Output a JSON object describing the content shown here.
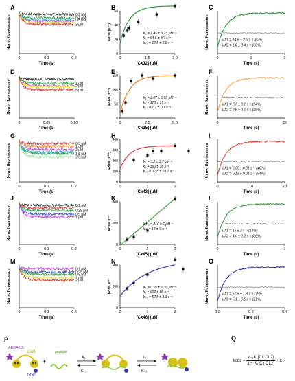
{
  "panels": {
    "A": {
      "label": "A",
      "ylabel": "Norm. fluorescence",
      "xlabel": "Time (s)",
      "xticks": [
        "0",
        "0.1",
        "0.2"
      ],
      "series": [
        {
          "name": "0.2 μM",
          "color": "#333333",
          "y": 0.97
        },
        {
          "name": "0.4 μM",
          "color": "#2ea043",
          "y": 0.88
        },
        {
          "name": "0.5 μM",
          "color": "#1fb0d6",
          "y": 0.83
        },
        {
          "name": "",
          "color": "#c848d8",
          "y": 0.8
        },
        {
          "name": "",
          "color": "#e8e030",
          "y": 0.77
        },
        {
          "name": "3 μM",
          "color": "#d63a3a",
          "y": 0.72
        }
      ]
    },
    "B": {
      "label": "B",
      "ylabel": "kobs (s⁻¹)",
      "xlabel": "[Cx32] (μM)",
      "xticks": [
        "0",
        "1.5",
        "3.0"
      ],
      "yticks": [
        "0",
        "20",
        "40",
        "60"
      ],
      "color": "#2e9b3c",
      "points": [
        [
          0.2,
          25
        ],
        [
          0.4,
          33
        ],
        [
          0.5,
          36
        ],
        [
          1.0,
          45
        ],
        [
          2.0,
          55
        ],
        [
          3.0,
          67
        ]
      ],
      "ann": [
        "K₁ = 1.45 ± 0.23 μM⁻¹",
        "k₂ = 64.5 ± 3.7 s⁻¹",
        "k₋₂ = 14.5 ± 2.6 s⁻¹"
      ]
    },
    "C": {
      "label": "C",
      "ylabel": "Norm. fluorescence",
      "xlabel": "Time (s)",
      "xticks": [
        "0",
        "1",
        "2"
      ],
      "color": "#2e9b3c",
      "ann": [
        "kₒff1 = 14.5 ± 2.6 s⁻¹ (62%)",
        "kₒff2 = 1.8 ± 0.4 s⁻¹ (38%)"
      ]
    },
    "D": {
      "label": "D",
      "ylabel": "Norm. fluorescence",
      "xlabel": "Time (s)",
      "xticks": [
        "0",
        "0.05",
        "0.10"
      ],
      "series": [
        {
          "name": "",
          "color": "#333333",
          "y": 0.96
        },
        {
          "name": "1 μM",
          "color": "#2ea043",
          "y": 0.86
        },
        {
          "name": "2 μM",
          "color": "#c848d8",
          "y": 0.8
        },
        {
          "name": "",
          "color": "#e8e030",
          "y": 0.77
        },
        {
          "name": "5 μM",
          "color": "#d63a3a",
          "y": 0.7
        }
      ]
    },
    "E": {
      "label": "E",
      "ylabel": "kobs (s⁻¹)",
      "xlabel": "[Cx35] (μM)",
      "xticks": [
        "0",
        "2.5",
        "5.0"
      ],
      "yticks": [
        "0",
        "50",
        "100",
        "150"
      ],
      "color": "#f07d1e",
      "points": [
        [
          0.2,
          25
        ],
        [
          0.5,
          55
        ],
        [
          1.0,
          130
        ],
        [
          2.0,
          150
        ],
        [
          3.0,
          140
        ],
        [
          5.0,
          150
        ]
      ],
      "ann": [
        "K₁ = 2.07 ± 0.78 μM⁻¹",
        "k₂ = 170 ± 15 s⁻¹",
        "k₋₂ = 7.7 ± 0.1 s⁻¹"
      ]
    },
    "F": {
      "label": "F",
      "ylabel": "Norm. fluorescence",
      "xlabel": "Time (s)",
      "xticks": [
        "0",
        "25"
      ],
      "color": "#f5a04a",
      "ann": [
        "kₒff1 = 7.7 ± 0.1 s⁻¹ (54%)",
        "kₒff2 = 2.6 ± 0.1 s⁻¹ (46%)"
      ]
    },
    "G": {
      "label": "G",
      "ylabel": "Norm. fluorescence",
      "xlabel": "Time (s)",
      "xticks": [
        "0",
        "0.1",
        "0.2"
      ],
      "series": [
        {
          "name": "0.5 μM",
          "color": "#d63a3a",
          "y": 0.95
        },
        {
          "name": "1 μM",
          "color": "#f07d1e",
          "y": 0.88
        },
        {
          "name": "2 μM",
          "color": "#c848d8",
          "y": 0.8
        },
        {
          "name": "",
          "color": "#1fb0d6",
          "y": 0.74
        },
        {
          "name": "1.5 μM",
          "color": "#2ea043",
          "y": 0.7
        },
        {
          "name": "2.5 μM",
          "color": "#9ee09e",
          "y": 0.62
        }
      ]
    },
    "H": {
      "label": "H",
      "ylabel": "kobs (s⁻¹)",
      "xlabel": "[Cx43] (μM)",
      "xticks": [
        "0",
        "1",
        "2"
      ],
      "yticks": [
        "0",
        "100",
        "200",
        "300",
        "400"
      ],
      "color": "#e03a3a",
      "points": [
        [
          0.5,
          205
        ],
        [
          1.0,
          250
        ],
        [
          1.2,
          290
        ],
        [
          1.5,
          290
        ],
        [
          2.0,
          340
        ],
        [
          2.5,
          290
        ]
      ],
      "ann": [
        "K₁ = 3.2 ± 1.7 μM⁻¹",
        "k₂ = 360 ± 38 s⁻¹",
        "k₋₂ = 0.35 ± 0.01 s⁻¹"
      ]
    },
    "I": {
      "label": "I",
      "ylabel": "Norm. fluorescence",
      "xlabel": "Time (s)",
      "xticks": [
        "0",
        "10",
        "20"
      ],
      "color": "#e03a3a",
      "ann": [
        "kₒff1 = 0.35 ± 0.01 s⁻¹ (46%)",
        "kₒff2 = 0.13 ± 0.01 s⁻¹ (54%)"
      ]
    },
    "J": {
      "label": "J",
      "ylabel": "Norm. fluorescence",
      "xlabel": "Time (s)",
      "xticks": [
        "0",
        "0.1",
        "0.2"
      ],
      "series": [
        {
          "name": "0.1 μM",
          "color": "#333333",
          "y": 0.97
        },
        {
          "name": "",
          "color": "#d63a3a",
          "y": 0.9
        },
        {
          "name": "0.25 μM",
          "color": "#2ea043",
          "y": 0.84
        },
        {
          "name": "0.5 μM",
          "color": "#3f51c8",
          "y": 0.75
        },
        {
          "name": "1 μM",
          "color": "#c848d8",
          "y": 0.68
        }
      ]
    },
    "K": {
      "label": "K",
      "ylabel": "kobs s⁻¹",
      "xlabel": "[Cx45] (μM)",
      "xticks": [
        "0",
        "1",
        "2"
      ],
      "yticks": [
        "0",
        "200",
        "400"
      ],
      "color": "#3aa03a",
      "points": [
        [
          0.25,
          45
        ],
        [
          0.5,
          70
        ],
        [
          1.0,
          130
        ],
        [
          2.0,
          430
        ]
      ],
      "ann": [
        "k₁K₁ = 216 ± 6 μM⁻¹",
        "k₋₁ = 13 ± 6 s⁻¹"
      ]
    },
    "L": {
      "label": "L",
      "ylabel": "Norm. fluorescence",
      "xlabel": "Time (s)",
      "xticks": [
        "0",
        "1"
      ],
      "color": "#3aa03a",
      "ann": [
        "kₒff1 = 15 ± 3 s⁻¹ (14%)",
        "kₒff2 = 4.0 ± 0.2 s⁻¹ (86%)"
      ]
    },
    "M": {
      "label": "M",
      "ylabel": "Norm. fluorescence",
      "xlabel": "Time (s)",
      "xticks": [
        "0",
        "0.1",
        "0.2"
      ],
      "series": [
        {
          "name": "0.1 μM",
          "color": "#c848d8",
          "y": 0.96
        },
        {
          "name": "0.25 μM",
          "color": "#3f51c8",
          "y": 0.88
        },
        {
          "name": "0.5 μM",
          "color": "#2ea043",
          "y": 0.82
        },
        {
          "name": "1 μM",
          "color": "#e8e030",
          "y": 0.74
        },
        {
          "name": "2 μM",
          "color": "#d63a3a",
          "y": 0.68
        }
      ]
    },
    "N": {
      "label": "N",
      "ylabel": "kobs s⁻¹",
      "xlabel": "[Cx46] (μM)",
      "xticks": [
        "0",
        "1",
        "2"
      ],
      "yticks": [
        "0",
        "200",
        "400"
      ],
      "color": "#3a3ab0",
      "points": [
        [
          0.25,
          180
        ],
        [
          0.5,
          230
        ],
        [
          1.0,
          310
        ],
        [
          2.0,
          450
        ],
        [
          2.3,
          360
        ]
      ],
      "ann": [
        "K₁ = 0.55 ± 0.16 μM⁻¹",
        "k₂ = 607 ± 86 s⁻¹",
        "k₋₂ = 57.5 ± 1.3 s⁻¹"
      ]
    },
    "O": {
      "label": "O",
      "ylabel": "Norm. fluorescence",
      "xlabel": "Time (s)",
      "xticks": [
        "0.0",
        "0.2",
        "0.4"
      ],
      "color": "#3a3ab0",
      "ann": [
        "kₒff1 = 57.5 ± 1.3 s⁻¹ (79%)",
        "kₒff2 = 6.1 ± 0.5 s⁻¹ (21%)"
      ]
    }
  },
  "scheme": {
    "label": "P",
    "aedans": "AEDANS",
    "cam": "CaM",
    "ddp": "DDP",
    "peptide": "peptide",
    "k1": "k₁",
    "km1": "k₋₁",
    "k2": "k₂",
    "km2": "k₋₂",
    "plus": "+"
  },
  "equation": {
    "label": "Q",
    "lhs": "kobs =",
    "num": "k₊₂K₁[Cx CL2]",
    "den": "1 + K₁[Cx CL2]",
    "tail": "+ k₋₂"
  },
  "chart_data": [
    {
      "type": "line",
      "title": "B",
      "xlabel": "[Cx32] (μM)",
      "ylabel": "kobs (s⁻¹)",
      "x": [
        0.2,
        0.4,
        0.5,
        1.0,
        2.0,
        3.0
      ],
      "y": [
        25,
        33,
        36,
        45,
        55,
        67
      ],
      "ylim": [
        0,
        70
      ]
    },
    {
      "type": "line",
      "title": "E",
      "xlabel": "[Cx35] (μM)",
      "ylabel": "kobs (s⁻¹)",
      "x": [
        0.2,
        0.5,
        1.0,
        2.0,
        3.0,
        5.0
      ],
      "y": [
        25,
        55,
        130,
        150,
        140,
        150
      ],
      "ylim": [
        0,
        180
      ]
    },
    {
      "type": "line",
      "title": "H",
      "xlabel": "[Cx43] (μM)",
      "ylabel": "kobs (s⁻¹)",
      "x": [
        0.5,
        1.0,
        1.2,
        1.5,
        2.0,
        2.5
      ],
      "y": [
        205,
        250,
        290,
        290,
        340,
        290
      ],
      "ylim": [
        0,
        400
      ]
    },
    {
      "type": "line",
      "title": "K",
      "xlabel": "[Cx45] (μM)",
      "ylabel": "kobs s⁻¹",
      "x": [
        0.25,
        0.5,
        1.0,
        2.0
      ],
      "y": [
        45,
        70,
        130,
        430
      ],
      "ylim": [
        0,
        500
      ]
    },
    {
      "type": "line",
      "title": "N",
      "xlabel": "[Cx46] (μM)",
      "ylabel": "kobs s⁻¹",
      "x": [
        0.25,
        0.5,
        1.0,
        2.0,
        2.3
      ],
      "y": [
        180,
        230,
        310,
        450,
        360
      ],
      "ylim": [
        0,
        500
      ]
    }
  ]
}
